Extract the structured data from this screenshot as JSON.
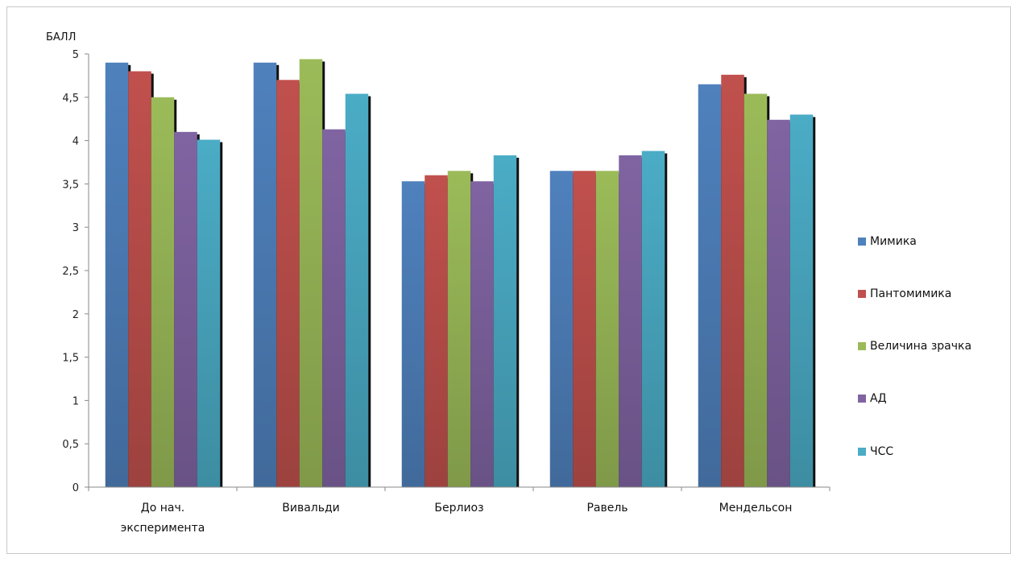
{
  "chart_data": {
    "type": "bar",
    "ylabel": "БАЛЛ",
    "ylim": [
      0,
      5
    ],
    "yticks": [
      "0",
      "0,5",
      "1",
      "1,5",
      "2",
      "2,5",
      "3",
      "3,5",
      "4",
      "4,5",
      "5"
    ],
    "categories": [
      [
        "До нач.",
        "эксперимента"
      ],
      [
        "Вивальди"
      ],
      [
        "Берлиоз"
      ],
      [
        "Равель"
      ],
      [
        "Мендельсон"
      ]
    ],
    "series": [
      {
        "name": "Мимика",
        "color": "#4f81bd",
        "values": [
          4.9,
          4.9,
          3.53,
          3.65,
          4.65
        ]
      },
      {
        "name": "Пантомимика",
        "color": "#c0504d",
        "values": [
          4.8,
          4.7,
          3.6,
          3.65,
          4.76
        ]
      },
      {
        "name": "Величина зрачка",
        "color": "#9bbb59",
        "values": [
          4.5,
          4.94,
          3.65,
          3.65,
          4.54
        ]
      },
      {
        "name": "АД",
        "color": "#8064a2",
        "values": [
          4.1,
          4.13,
          3.53,
          3.83,
          4.24
        ]
      },
      {
        "name": "ЧСС",
        "color": "#4bacc6",
        "values": [
          4.01,
          4.54,
          3.83,
          3.88,
          4.3
        ]
      }
    ],
    "legend_position": "right",
    "grid": false
  }
}
